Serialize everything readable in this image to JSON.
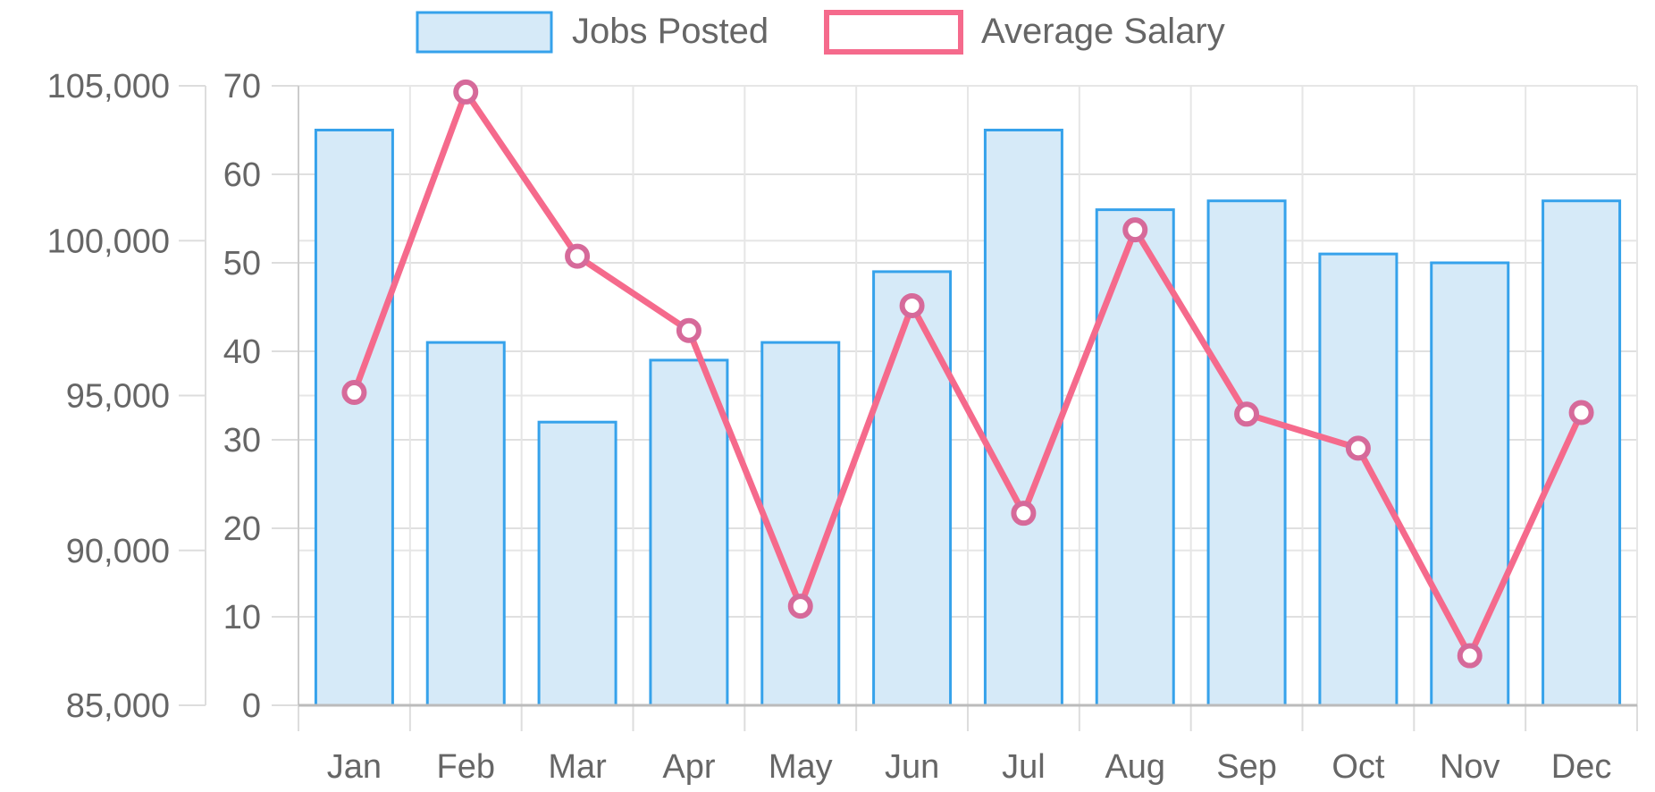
{
  "chart_data": {
    "type": "bar",
    "categories": [
      "Jan",
      "Feb",
      "Mar",
      "Apr",
      "May",
      "Jun",
      "Jul",
      "Aug",
      "Sep",
      "Oct",
      "Nov",
      "Dec"
    ],
    "series": [
      {
        "name": "Jobs Posted",
        "type": "bar",
        "axis": "left",
        "values": [
          65,
          41,
          32,
          39,
          41,
          49,
          65,
          56,
          57,
          51,
          50,
          57
        ],
        "color": "#36a2eb",
        "fill": "#d6eaf8"
      },
      {
        "name": "Average Salary",
        "type": "line",
        "axis": "right",
        "values": [
          95100,
          104800,
          99500,
          97100,
          88200,
          97900,
          91200,
          100350,
          94400,
          93300,
          86600,
          94450
        ],
        "color": "#f56a8c",
        "point_color": "#d66a9a"
      }
    ],
    "left_axis": {
      "ylim": [
        0,
        70
      ],
      "ticks": [
        "0",
        "10",
        "20",
        "30",
        "40",
        "50",
        "60",
        "70"
      ]
    },
    "right_axis": {
      "ylim": [
        85000,
        105000
      ],
      "ticks": [
        "85,000",
        "90,000",
        "95,000",
        "100,000",
        "105,000"
      ]
    },
    "title": "",
    "xlabel": "",
    "ylabel": "",
    "grid": true,
    "legend_position": "top-center"
  }
}
